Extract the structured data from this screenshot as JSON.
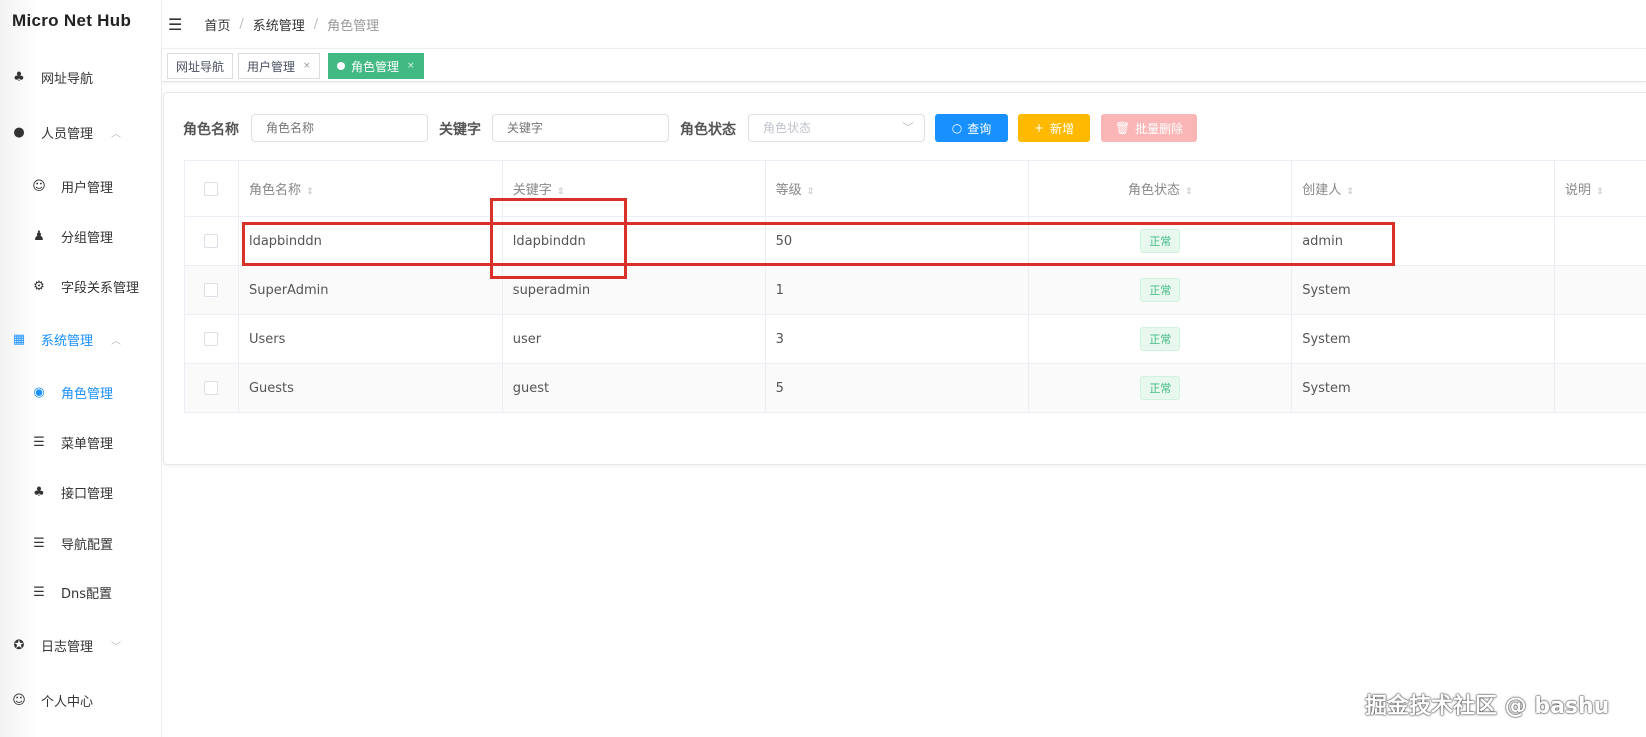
{
  "app_title": "Micro Net Hub",
  "sidebar": {
    "items": [
      {
        "label": "网址导航",
        "icon": "sitemap-icon"
      },
      {
        "label": "人员管理",
        "icon": "user-icon",
        "expanded": true
      },
      {
        "label": "用户管理",
        "icon": "user-face-icon"
      },
      {
        "label": "分组管理",
        "icon": "group-icon"
      },
      {
        "label": "字段关系管理",
        "icon": "gear-icon"
      },
      {
        "label": "系统管理",
        "icon": "grid-icon",
        "expanded": true
      },
      {
        "label": "角色管理",
        "icon": "eye-icon",
        "active": true
      },
      {
        "label": "菜单管理",
        "icon": "menu-tree-icon"
      },
      {
        "label": "接口管理",
        "icon": "sitemap-icon"
      },
      {
        "label": "导航配置",
        "icon": "list-icon"
      },
      {
        "label": "Dns配置",
        "icon": "list-icon"
      },
      {
        "label": "日志管理",
        "icon": "lifebuoy-icon",
        "expanded": false
      },
      {
        "label": "个人中心",
        "icon": "user-face-icon"
      }
    ]
  },
  "breadcrumb": [
    "首页",
    "系统管理",
    "角色管理"
  ],
  "tabs": [
    {
      "label": "网址导航"
    },
    {
      "label": "用户管理"
    },
    {
      "label": "角色管理",
      "active": true
    }
  ],
  "filters": {
    "role_name": {
      "label": "角色名称",
      "placeholder": "角色名称"
    },
    "keyword": {
      "label": "关键字",
      "placeholder": "关键字"
    },
    "status": {
      "label": "角色状态",
      "placeholder": "角色状态"
    },
    "query_label": "查询",
    "add_label": "新增",
    "batch_delete_label": "批量删除"
  },
  "colors": {
    "primary": "#1890ff",
    "add": "#ffba00",
    "danger_disabled": "#fab6b6",
    "tab_active": "#42b983",
    "highlight": "#d9302a"
  },
  "table": {
    "columns": [
      "角色名称",
      "关键字",
      "等级",
      "角色状态",
      "创建人",
      "说明"
    ],
    "rows": [
      {
        "name": "ldapbinddn",
        "keyword": "ldapbinddn",
        "level": "50",
        "status": "正常",
        "creator": "admin",
        "desc": ""
      },
      {
        "name": "SuperAdmin",
        "keyword": "superadmin",
        "level": "1",
        "status": "正常",
        "creator": "System",
        "desc": ""
      },
      {
        "name": "Users",
        "keyword": "user",
        "level": "3",
        "status": "正常",
        "creator": "System",
        "desc": ""
      },
      {
        "name": "Guests",
        "keyword": "guest",
        "level": "5",
        "status": "正常",
        "creator": "System",
        "desc": ""
      }
    ]
  },
  "watermark": "掘金技术社区 @ bashu"
}
